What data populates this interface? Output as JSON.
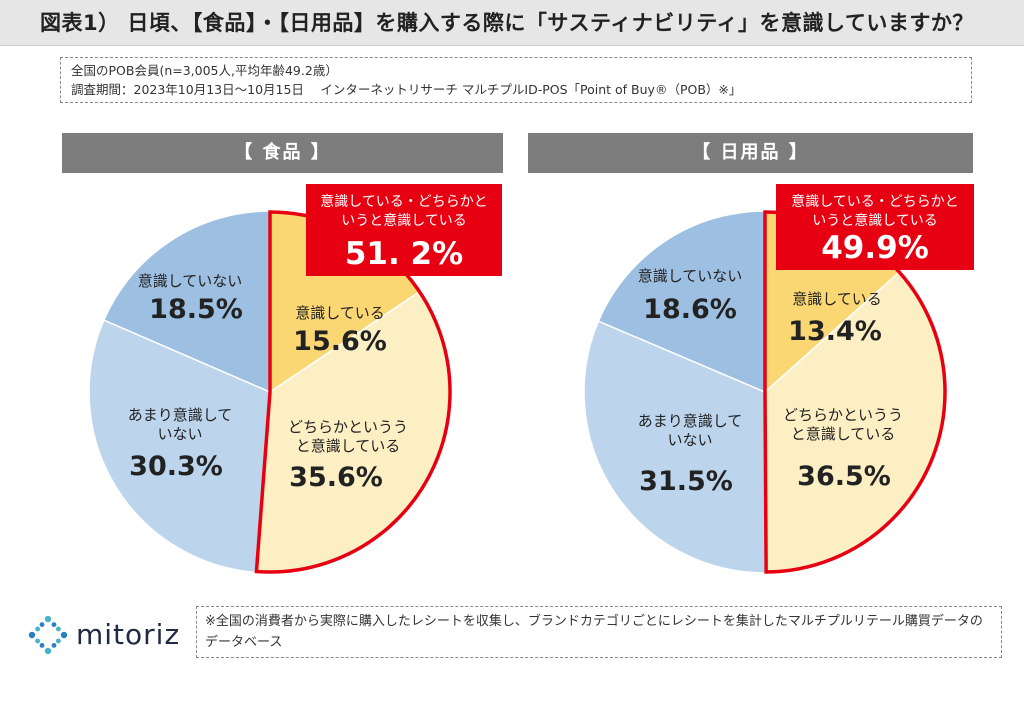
{
  "title": "図表1） 日頃、【食品】・【日用品】を購入する際に「サスティナビリティ」を意識していますか？",
  "info": {
    "line1": "全国のPOB会員(n=3,005人,平均年齢49.2歳）",
    "line2": "調査期間：2023年10月13日～10月15日　 インターネットリサーチ マルチプルID-POS「Point of Buy®（POB）※」"
  },
  "footer_note": "※全国の消費者から実際に購入したレシートを収集し、ブランドカテゴリごとにレシートを集計したマルチプルリテール購買データのデータベース",
  "logo_text": "mitoriz",
  "colors": {
    "conscious": "#fbd774",
    "somewhat_conscious": "#fdefc4",
    "not_very_conscious": "#bcd5ec",
    "not_conscious": "#9dbfe2",
    "highlight": "#e60012",
    "header_bg": "#7d7d7d"
  },
  "chart_data": [
    {
      "type": "pie",
      "title": "【 食品 】",
      "slices": [
        {
          "label_lines": [
            "意識している"
          ],
          "value": 15.6,
          "value_label": "15.6%",
          "color": "#fbd774"
        },
        {
          "label_lines": [
            "どちらかというう",
            "と意識している"
          ],
          "value": 35.6,
          "value_label": "35.6%",
          "color": "#fdefc4"
        },
        {
          "label_lines": [
            "あまり意識して",
            "いない"
          ],
          "value": 30.3,
          "value_label": "30.3%",
          "color": "#bcd5ec"
        },
        {
          "label_lines": [
            "意識していない"
          ],
          "value": 18.5,
          "value_label": "18.5%",
          "color": "#9dbfe2"
        }
      ],
      "callout": {
        "lines": [
          "意識している・どちらかと",
          "いうと意識している"
        ],
        "value": 51.2,
        "value_label": "51. 2%"
      }
    },
    {
      "type": "pie",
      "title": "【 日用品 】",
      "slices": [
        {
          "label_lines": [
            "意識している"
          ],
          "value": 13.4,
          "value_label": "13.4%",
          "color": "#fbd774"
        },
        {
          "label_lines": [
            "どちらかというう",
            "と意識している"
          ],
          "value": 36.5,
          "value_label": "36.5%",
          "color": "#fdefc4"
        },
        {
          "label_lines": [
            "あまり意識して",
            "いない"
          ],
          "value": 31.5,
          "value_label": "31.5%",
          "color": "#bcd5ec"
        },
        {
          "label_lines": [
            "意識していない"
          ],
          "value": 18.6,
          "value_label": "18.6%",
          "color": "#9dbfe2"
        }
      ],
      "callout": {
        "lines": [
          "意識している・どちらかと",
          "いうと意識している"
        ],
        "value": 49.9,
        "value_label": "49.9%"
      }
    }
  ]
}
